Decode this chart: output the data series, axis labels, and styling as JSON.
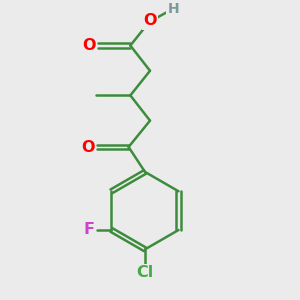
{
  "bg_color": "#ebebeb",
  "bond_color": "#3d8c3d",
  "bond_width": 1.8,
  "atom_colors": {
    "O": "#ff0000",
    "H": "#7a9a9a",
    "F": "#cc44cc",
    "Cl": "#44aa44"
  },
  "font_size_atoms": 11.5,
  "figsize": [
    3.0,
    3.0
  ],
  "dpi": 100,
  "xlim": [
    0,
    10
  ],
  "ylim": [
    0,
    10
  ]
}
